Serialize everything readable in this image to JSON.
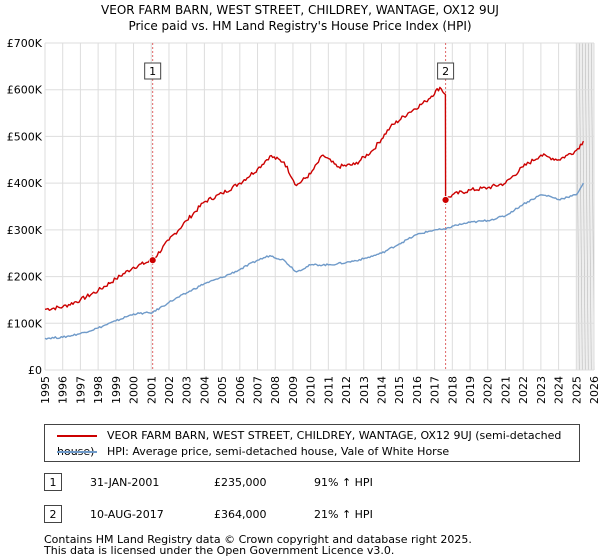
{
  "title_line1": "VEOR FARM BARN, WEST STREET, CHILDREY, WANTAGE, OX12 9UJ",
  "title_line2": "Price paid vs. HM Land Registry's House Price Index (HPI)",
  "legend": {
    "red_label": "VEOR FARM BARN, WEST STREET, CHILDREY, WANTAGE, OX12 9UJ (semi-detached house)",
    "blue_label": "HPI: Average price, semi-detached house, Vale of White Horse"
  },
  "colors": {
    "red": "#cc0000",
    "blue": "#6f9ac9",
    "marker_line": "#e06666",
    "band": "#dde6f3"
  },
  "transactions": [
    {
      "num": "1",
      "date": "31-JAN-2001",
      "price": "£235,000",
      "hpi": "91% ↑ HPI"
    },
    {
      "num": "2",
      "date": "10-AUG-2017",
      "price": "£364,000",
      "hpi": "21% ↑ HPI"
    }
  ],
  "footer": {
    "line1": "Contains HM Land Registry data © Crown copyright and database right 2025.",
    "line2": "This data is licensed under the Open Government Licence v3.0."
  },
  "chart_data": {
    "type": "line",
    "title": "VEOR FARM BARN, WEST STREET, CHILDREY, WANTAGE, OX12 9UJ",
    "subtitle": "Price paid vs. HM Land Registry's House Price Index (HPI)",
    "xlabel": "",
    "ylabel": "",
    "xlim": [
      1995,
      2026
    ],
    "ylim": [
      0,
      700000
    ],
    "x_ticks": [
      1995,
      1996,
      1997,
      1998,
      1999,
      2000,
      2001,
      2002,
      2003,
      2004,
      2005,
      2006,
      2007,
      2008,
      2009,
      2010,
      2011,
      2012,
      2013,
      2014,
      2015,
      2016,
      2017,
      2018,
      2019,
      2020,
      2021,
      2022,
      2023,
      2024,
      2025,
      2026
    ],
    "x_tick_labels": [
      "1995",
      "1996",
      "1997",
      "1998",
      "1999",
      "2000",
      "2001",
      "2002",
      "2003",
      "2004",
      "2005",
      "2006",
      "2007",
      "2008",
      "2009",
      "2010",
      "2011",
      "2012",
      "2013",
      "2014",
      "2015",
      "2016",
      "2017",
      "2018",
      "2019",
      "2020",
      "2021",
      "2022",
      "2023",
      "2024",
      "2025",
      "2026"
    ],
    "y_ticks": [
      0,
      100000,
      200000,
      300000,
      400000,
      500000,
      600000,
      700000
    ],
    "y_tick_labels": [
      "£0",
      "£100K",
      "£200K",
      "£300K",
      "£400K",
      "£500K",
      "£600K",
      "£700K"
    ],
    "grid": true,
    "shaded_region": {
      "from": 2025.0,
      "to": 2026.0
    },
    "series": [
      {
        "name": "VEOR FARM BARN, WEST STREET, CHILDREY, WANTAGE, OX12 9UJ (semi-detached house)",
        "color": "#cc0000",
        "x": [
          1995.0,
          1996.0,
          1997.0,
          1998.0,
          1999.0,
          2000.0,
          2001.08,
          2002.0,
          2003.0,
          2004.0,
          2005.0,
          2006.0,
          2007.0,
          2007.7,
          2008.5,
          2009.2,
          2010.0,
          2010.7,
          2011.5,
          2012.5,
          2013.5,
          2014.5,
          2015.5,
          2016.5,
          2017.3,
          2017.61,
          2017.62,
          2018.0,
          2019.0,
          2020.0,
          2021.0,
          2022.0,
          2023.0,
          2023.5,
          2024.0,
          2024.5,
          2025.0,
          2025.4
        ],
        "y": [
          130000,
          135000,
          150000,
          170000,
          195000,
          220000,
          235000,
          278000,
          320000,
          360000,
          378000,
          400000,
          430000,
          458000,
          445000,
          395000,
          420000,
          460000,
          435000,
          440000,
          470000,
          520000,
          550000,
          575000,
          605000,
          590000,
          364000,
          375000,
          385000,
          390000,
          400000,
          435000,
          460000,
          455000,
          450000,
          460000,
          470000,
          490000
        ]
      },
      {
        "name": "HPI: Average price, semi-detached house, Vale of White Horse",
        "color": "#6f9ac9",
        "x": [
          1995.0,
          1996.0,
          1997.0,
          1998.0,
          1999.0,
          2000.0,
          2001.08,
          2002.0,
          2003.0,
          2004.0,
          2005.0,
          2006.0,
          2007.0,
          2007.7,
          2008.5,
          2009.2,
          2010.0,
          2011.0,
          2012.0,
          2013.0,
          2014.0,
          2015.0,
          2016.0,
          2017.0,
          2017.62,
          2018.0,
          2019.0,
          2020.0,
          2021.0,
          2022.0,
          2023.0,
          2023.5,
          2024.0,
          2024.5,
          2025.0,
          2025.4
        ],
        "y": [
          68000,
          70000,
          78000,
          90000,
          105000,
          120000,
          123000,
          145000,
          165000,
          185000,
          198000,
          215000,
          235000,
          245000,
          235000,
          210000,
          225000,
          225000,
          230000,
          238000,
          250000,
          270000,
          290000,
          300000,
          301000,
          308000,
          316000,
          320000,
          330000,
          355000,
          375000,
          372000,
          365000,
          370000,
          375000,
          400000
        ]
      }
    ],
    "markers": [
      {
        "label": "1",
        "x": 2001.08,
        "y": 235000
      },
      {
        "label": "2",
        "x": 2017.62,
        "y": 364000
      }
    ]
  }
}
